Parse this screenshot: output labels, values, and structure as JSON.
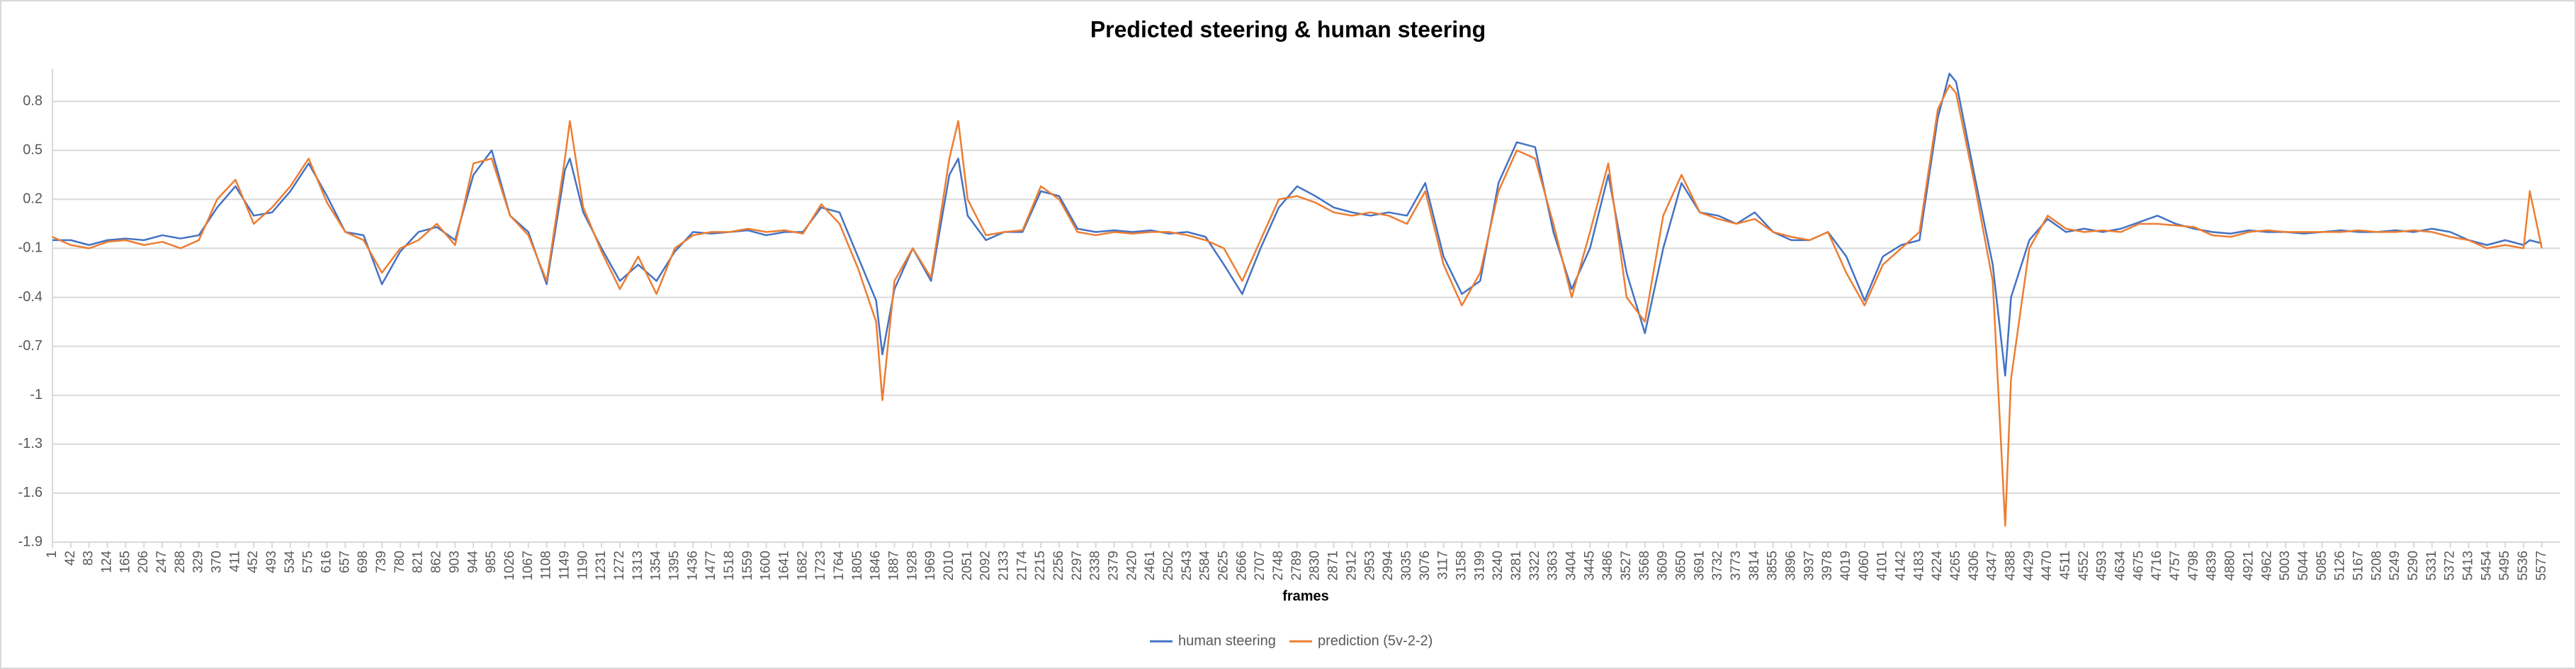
{
  "chart_data": {
    "type": "line",
    "title": "Predicted steering & human steering",
    "x_label": "frames",
    "x": [
      1,
      42,
      83,
      124,
      165,
      206,
      247,
      288,
      329,
      370,
      411,
      452,
      493,
      534,
      575,
      616,
      657,
      698,
      739,
      780,
      821,
      862,
      903,
      944,
      985,
      1026,
      1067,
      1108,
      1149,
      1160,
      1190,
      1231,
      1272,
      1313,
      1354,
      1395,
      1436,
      1477,
      1518,
      1559,
      1600,
      1641,
      1682,
      1723,
      1764,
      1805,
      1846,
      1860,
      1887,
      1928,
      1969,
      2010,
      2030,
      2051,
      2092,
      2133,
      2174,
      2215,
      2256,
      2297,
      2338,
      2379,
      2420,
      2461,
      2502,
      2543,
      2584,
      2625,
      2666,
      2707,
      2748,
      2789,
      2830,
      2871,
      2912,
      2953,
      2994,
      3035,
      3076,
      3117,
      3158,
      3199,
      3240,
      3281,
      3322,
      3363,
      3404,
      3445,
      3486,
      3527,
      3568,
      3609,
      3650,
      3691,
      3732,
      3773,
      3814,
      3855,
      3896,
      3937,
      3978,
      4019,
      4060,
      4101,
      4142,
      4183,
      4224,
      4250,
      4265,
      4306,
      4347,
      4375,
      4388,
      4429,
      4470,
      4511,
      4552,
      4593,
      4634,
      4675,
      4716,
      4757,
      4798,
      4839,
      4880,
      4921,
      4962,
      5003,
      5044,
      5085,
      5126,
      5167,
      5208,
      5249,
      5290,
      5331,
      5372,
      5413,
      5454,
      5495,
      5536,
      5550,
      5577
    ],
    "series": [
      {
        "name": "human steering",
        "color": "#4472c4",
        "values": [
          -0.05,
          -0.05,
          -0.08,
          -0.05,
          -0.04,
          -0.05,
          -0.02,
          -0.04,
          -0.02,
          0.15,
          0.28,
          0.1,
          0.12,
          0.25,
          0.42,
          0.22,
          0.0,
          -0.02,
          -0.32,
          -0.12,
          0.0,
          0.03,
          -0.05,
          0.35,
          0.5,
          0.1,
          0.0,
          -0.32,
          0.38,
          0.45,
          0.12,
          -0.1,
          -0.3,
          -0.2,
          -0.3,
          -0.12,
          0.0,
          -0.01,
          0.0,
          0.01,
          -0.02,
          0.0,
          0.0,
          0.15,
          0.12,
          -0.15,
          -0.42,
          -0.75,
          -0.35,
          -0.1,
          -0.3,
          0.35,
          0.45,
          0.1,
          -0.05,
          0.0,
          0.0,
          0.25,
          0.22,
          0.02,
          0.0,
          0.01,
          0.0,
          0.01,
          -0.01,
          0.0,
          -0.03,
          -0.2,
          -0.38,
          -0.1,
          0.15,
          0.28,
          0.22,
          0.15,
          0.12,
          0.1,
          0.12,
          0.1,
          0.3,
          -0.15,
          -0.38,
          -0.3,
          0.3,
          0.55,
          0.52,
          0.0,
          -0.35,
          -0.1,
          0.35,
          -0.25,
          -0.62,
          -0.1,
          0.3,
          0.12,
          0.1,
          0.05,
          0.12,
          0.0,
          -0.05,
          -0.05,
          0.0,
          -0.15,
          -0.42,
          -0.15,
          -0.08,
          -0.05,
          0.7,
          0.97,
          0.92,
          0.35,
          -0.2,
          -0.88,
          -0.4,
          -0.05,
          0.08,
          0.0,
          0.02,
          0.0,
          0.02,
          0.06,
          0.1,
          0.05,
          0.02,
          0.0,
          -0.01,
          0.01,
          0.0,
          0.0,
          -0.01,
          0.0,
          0.01,
          0.0,
          0.0,
          0.01,
          0.0,
          0.02,
          0.0,
          -0.05,
          -0.08,
          -0.05,
          -0.08,
          -0.05,
          -0.07
        ]
      },
      {
        "name": "prediction (5v-2-2)",
        "color": "#ed7d31",
        "values": [
          -0.03,
          -0.08,
          -0.1,
          -0.06,
          -0.05,
          -0.08,
          -0.06,
          -0.1,
          -0.05,
          0.2,
          0.32,
          0.05,
          0.15,
          0.28,
          0.45,
          0.18,
          0.0,
          -0.05,
          -0.25,
          -0.1,
          -0.05,
          0.05,
          -0.08,
          0.42,
          0.45,
          0.1,
          -0.02,
          -0.3,
          0.45,
          0.68,
          0.15,
          -0.12,
          -0.35,
          -0.15,
          -0.38,
          -0.1,
          -0.02,
          0.0,
          0.0,
          0.02,
          0.0,
          0.01,
          -0.01,
          0.17,
          0.05,
          -0.22,
          -0.55,
          -1.03,
          -0.3,
          -0.1,
          -0.28,
          0.45,
          0.68,
          0.2,
          -0.02,
          0.0,
          0.01,
          0.28,
          0.2,
          0.0,
          -0.02,
          0.0,
          -0.01,
          0.0,
          0.0,
          -0.02,
          -0.05,
          -0.1,
          -0.3,
          -0.05,
          0.2,
          0.22,
          0.18,
          0.12,
          0.1,
          0.12,
          0.1,
          0.05,
          0.25,
          -0.2,
          -0.45,
          -0.25,
          0.25,
          0.5,
          0.45,
          0.05,
          -0.4,
          0.0,
          0.42,
          -0.4,
          -0.55,
          0.1,
          0.35,
          0.12,
          0.08,
          0.05,
          0.08,
          0.0,
          -0.03,
          -0.05,
          0.0,
          -0.25,
          -0.45,
          -0.2,
          -0.1,
          0.0,
          0.75,
          0.9,
          0.85,
          0.3,
          -0.3,
          -1.8,
          -0.9,
          -0.1,
          0.1,
          0.02,
          0.0,
          0.01,
          0.0,
          0.05,
          0.05,
          0.04,
          0.03,
          -0.02,
          -0.03,
          0.0,
          0.01,
          0.0,
          0.0,
          0.0,
          0.0,
          0.01,
          0.0,
          0.0,
          0.01,
          0.0,
          -0.03,
          -0.05,
          -0.1,
          -0.08,
          -0.1,
          0.25,
          -0.1
        ]
      }
    ],
    "xlim": [
      1,
      5617
    ],
    "xticks": [
      1,
      42,
      83,
      124,
      165,
      206,
      247,
      288,
      329,
      370,
      411,
      452,
      493,
      534,
      575,
      616,
      657,
      698,
      739,
      780,
      821,
      862,
      903,
      944,
      985,
      1026,
      1067,
      1108,
      1149,
      1190,
      1231,
      1272,
      1313,
      1354,
      1395,
      1436,
      1477,
      1518,
      1559,
      1600,
      1641,
      1682,
      1723,
      1764,
      1805,
      1846,
      1887,
      1928,
      1969,
      2010,
      2051,
      2092,
      2133,
      2174,
      2215,
      2256,
      2297,
      2338,
      2379,
      2420,
      2461,
      2502,
      2543,
      2584,
      2625,
      2666,
      2707,
      2748,
      2789,
      2830,
      2871,
      2912,
      2953,
      2994,
      3035,
      3076,
      3117,
      3158,
      3199,
      3240,
      3281,
      3322,
      3363,
      3404,
      3445,
      3486,
      3527,
      3568,
      3609,
      3650,
      3691,
      3732,
      3773,
      3814,
      3855,
      3896,
      3937,
      3978,
      4019,
      4060,
      4101,
      4142,
      4183,
      4224,
      4265,
      4306,
      4347,
      4388,
      4429,
      4470,
      4511,
      4552,
      4593,
      4634,
      4675,
      4716,
      4757,
      4798,
      4839,
      4880,
      4921,
      4962,
      5003,
      5044,
      5085,
      5126,
      5167,
      5208,
      5249,
      5290,
      5331,
      5372,
      5413,
      5454,
      5495,
      5536,
      5577
    ],
    "ylim": [
      -1.9,
      1.0
    ],
    "yticks": [
      0.8,
      0.5,
      0.2,
      -0.1,
      -0.4,
      -0.7,
      -1,
      -1.3,
      -1.6,
      -1.9
    ],
    "grid": true,
    "legend": "bottom"
  }
}
